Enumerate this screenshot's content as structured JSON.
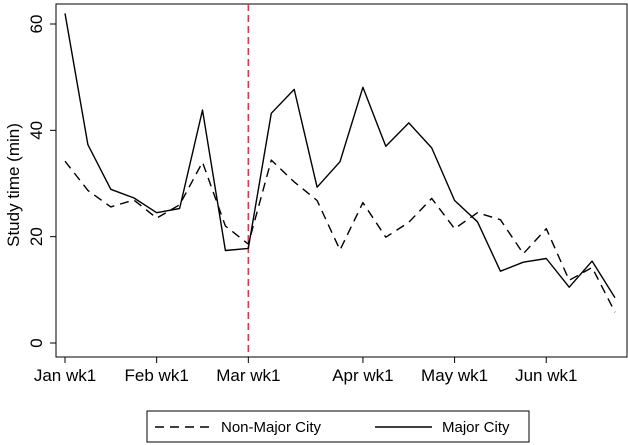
{
  "chart_data": {
    "type": "line",
    "title": "",
    "xlabel": "",
    "ylabel": "Study time (min)",
    "x_tick_labels": [
      "Jan wk1",
      "Feb wk1",
      "Mar wk1",
      "Apr wk1",
      "May wk1",
      "Jun wk1"
    ],
    "x_tick_positions": [
      0,
      4,
      8,
      13,
      17,
      21
    ],
    "ylim": [
      0,
      62
    ],
    "y_ticks": [
      0,
      20,
      40,
      60
    ],
    "reference_line": {
      "x": 8,
      "color": "#d23b57",
      "style": "dashed"
    },
    "legend_position": "bottom",
    "series": [
      {
        "name": "Non-Major City",
        "style": "dashed",
        "color": "#000000",
        "x": [
          0,
          1,
          2,
          3,
          4,
          5,
          6,
          7,
          8,
          9,
          10,
          11,
          12,
          13,
          14,
          15,
          16,
          17,
          18,
          19,
          20,
          21,
          22,
          23,
          24
        ],
        "values": [
          34.2,
          28.7,
          25.6,
          26.9,
          23.5,
          26.0,
          34.0,
          22.0,
          18.6,
          34.4,
          30.3,
          26.8,
          17.5,
          26.4,
          19.9,
          22.7,
          27.2,
          21.5,
          24.5,
          23.2,
          16.8,
          21.5,
          11.8,
          14.2,
          5.8
        ]
      },
      {
        "name": "Major City",
        "style": "solid",
        "color": "#000000",
        "x": [
          0,
          1,
          2,
          3,
          4,
          5,
          6,
          7,
          8,
          9,
          10,
          11,
          12,
          13,
          14,
          15,
          16,
          17,
          18,
          19,
          20,
          21,
          22,
          23,
          24
        ],
        "values": [
          62.0,
          37.3,
          28.9,
          27.3,
          24.5,
          25.3,
          43.8,
          17.4,
          17.8,
          43.2,
          47.7,
          29.3,
          34.1,
          48.1,
          37.0,
          41.4,
          36.7,
          26.8,
          22.8,
          13.5,
          15.2,
          15.9,
          10.5,
          15.4,
          8.5
        ]
      }
    ]
  }
}
